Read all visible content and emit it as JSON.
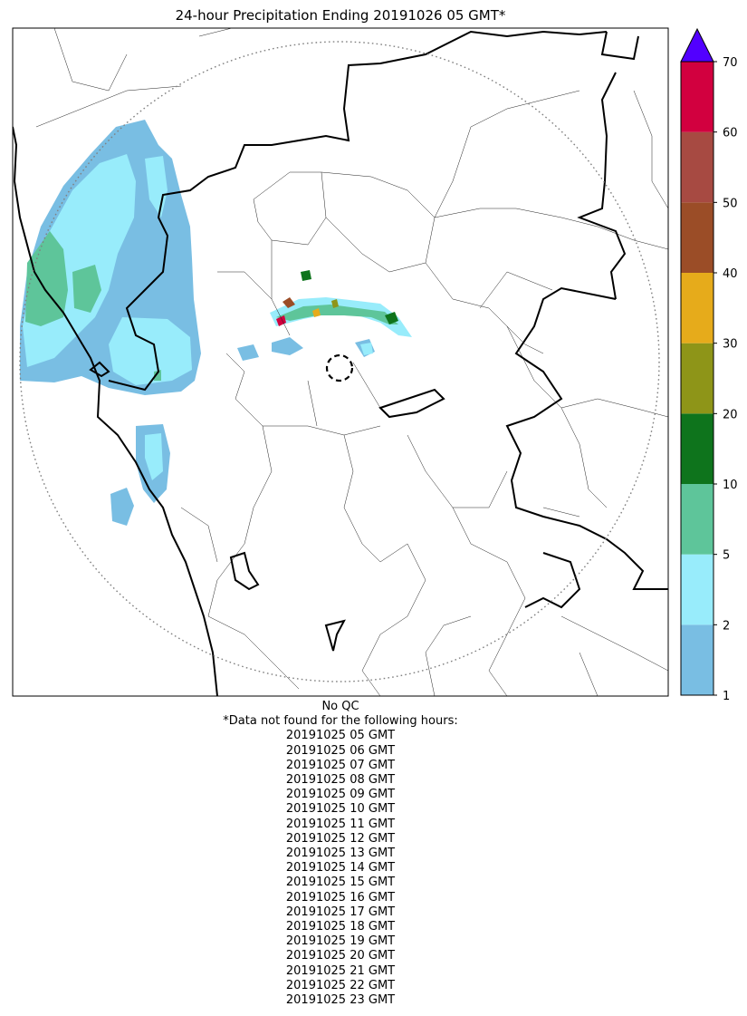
{
  "title": "24-hour Precipitation Ending 20191026 05 GMT*",
  "colorbar": {
    "ticks": [
      "1",
      "2",
      "5",
      "10",
      "20",
      "30",
      "40",
      "50",
      "60",
      "70"
    ],
    "colors": [
      "#79bee3",
      "#98ecfb",
      "#5ec59a",
      "#0e741c",
      "#8e9518",
      "#e6ab1b",
      "#9b4d27",
      "#a74a42",
      "#d2003f"
    ],
    "extend_color": "#5200ff"
  },
  "map": {
    "radar_range_ring": "dotted",
    "radar_site_marker": "dashed-circle"
  },
  "notes": {
    "qc": "No QC",
    "missing_header": "*Data not found for the following hours:",
    "missing_hours": [
      "20191025 05 GMT",
      "20191025 06 GMT",
      "20191025 07 GMT",
      "20191025 08 GMT",
      "20191025 09 GMT",
      "20191025 10 GMT",
      "20191025 11 GMT",
      "20191025 12 GMT",
      "20191025 13 GMT",
      "20191025 14 GMT",
      "20191025 15 GMT",
      "20191025 16 GMT",
      "20191025 17 GMT",
      "20191025 18 GMT",
      "20191025 19 GMT",
      "20191025 20 GMT",
      "20191025 21 GMT",
      "20191025 22 GMT",
      "20191025 23 GMT"
    ]
  }
}
